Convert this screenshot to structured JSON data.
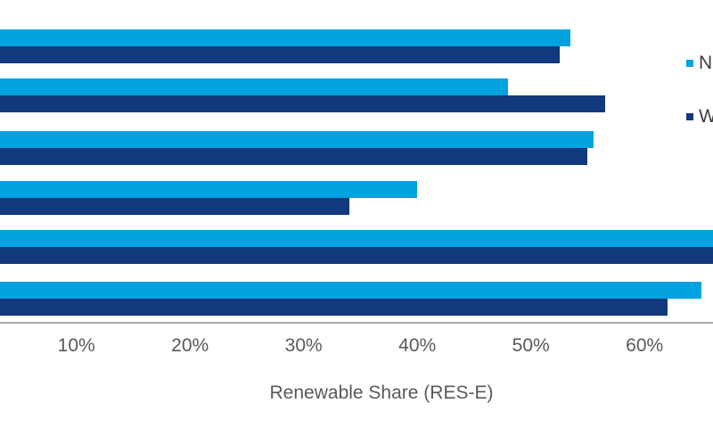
{
  "chart_data": {
    "type": "bar",
    "orientation": "horizontal",
    "title": "",
    "xlabel": "Renewable Share (RES-E)",
    "ylabel": "",
    "categories": [
      "",
      "",
      "",
      "",
      "",
      ""
    ],
    "categories_note": "6 category rows; category labels are cropped off the left edge of the image",
    "x_axis": {
      "tick_labels": [
        "10%",
        "20%",
        "30%",
        "40%",
        "50%",
        "60%"
      ],
      "tick_values": [
        10,
        20,
        30,
        40,
        50,
        60
      ],
      "unit": "%",
      "visible_range_pct": [
        3.3,
        66
      ],
      "gridlines": false
    },
    "series": [
      {
        "name": "N",
        "legend_label_visible": "N",
        "color": "#00a2e0",
        "values_pct": [
          53.5,
          48,
          55.5,
          40,
          67,
          65
        ]
      },
      {
        "name": "W",
        "legend_label_visible": "W",
        "color": "#12387d",
        "values_pct": [
          52.5,
          56.5,
          55,
          34,
          67,
          62
        ]
      }
    ],
    "legend_position": "right",
    "clipping_notes": "Chart is cropped: 0% origin is off-screen left; both bars of row 5 extend past the right edge (>= 66%); legend labels are truncated at the right edge showing only first letters"
  },
  "legend": {
    "items": [
      {
        "label": "N",
        "color": "#00a2e0"
      },
      {
        "label": "W",
        "color": "#12387d"
      }
    ]
  },
  "colors": {
    "series_light_blue": "#00a2e0",
    "series_dark_navy": "#12387d",
    "axis_line": "#a8a8a8",
    "axis_text": "#595959",
    "legend_text": "#3d3d3d",
    "background": "#ffffff"
  }
}
